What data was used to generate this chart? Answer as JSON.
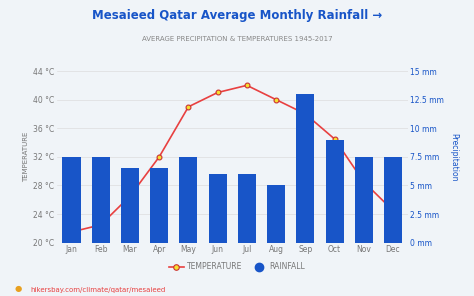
{
  "title": "Mesaieed Qatar Average Monthly Rainfall →",
  "subtitle": "AVERAGE PRECIPITATION & TEMPERATURES 1945-2017",
  "months": [
    "Jan",
    "Feb",
    "Mar",
    "Apr",
    "May",
    "Jun",
    "Jul",
    "Aug",
    "Sep",
    "Oct",
    "Nov",
    "Dec"
  ],
  "rainfall_mm": [
    7.5,
    7.5,
    6.5,
    6.5,
    7.5,
    6.0,
    6.0,
    5.0,
    13.0,
    9.0,
    7.5,
    7.5
  ],
  "temperature_c": [
    21.5,
    22.5,
    26.5,
    32.0,
    39.0,
    41.0,
    42.0,
    40.0,
    38.0,
    34.5,
    28.5,
    24.5
  ],
  "bar_color": "#1855c8",
  "line_color": "#e84040",
  "marker_face": "#f5e030",
  "marker_edge": "#cc3030",
  "bg_color": "#f0f4f8",
  "plot_bg_color": "#f0f4f8",
  "temp_ylim": [
    20,
    44
  ],
  "temp_yticks": [
    20,
    24,
    28,
    32,
    36,
    40,
    44
  ],
  "precip_ylim": [
    0,
    15
  ],
  "precip_yticks": [
    0,
    2.5,
    5.0,
    7.5,
    10.0,
    12.5,
    15.0
  ],
  "ylabel_left": "TEMPERATURE",
  "ylabel_right": "Precipitation",
  "title_color": "#1855c8",
  "subtitle_color": "#888888",
  "axis_color": "#777777",
  "right_axis_color": "#1855c8",
  "grid_color": "#dddddd",
  "footer": "hikersbay.com/climate/qatar/mesaieed",
  "footer_color": "#e84040",
  "footer_icon_color": "#e8a020",
  "legend_temp": "TEMPERATURE",
  "legend_rain": "RAINFALL"
}
